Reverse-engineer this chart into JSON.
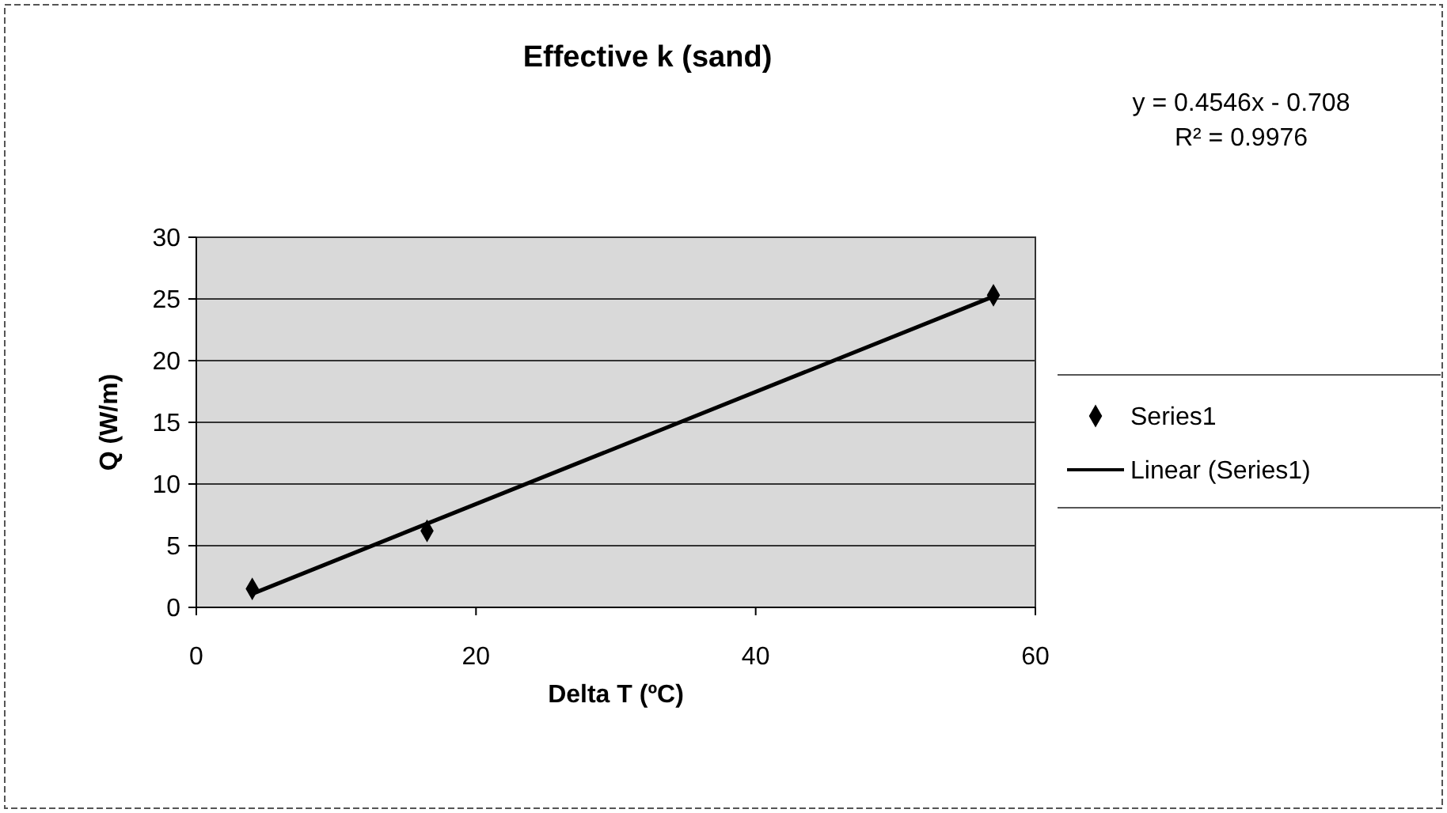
{
  "chart_data": {
    "type": "scatter",
    "title": "Effective k (sand)",
    "xlabel": "Delta T (ºC)",
    "ylabel": "Q (W/m)",
    "xlim": [
      0,
      60
    ],
    "xticks": [
      0,
      20,
      40,
      60
    ],
    "ylim": [
      0,
      30
    ],
    "yticks": [
      0,
      5,
      10,
      15,
      20,
      25,
      30
    ],
    "grid": "y",
    "legend": "right",
    "marker": "diamond",
    "series": [
      {
        "name": "Series1",
        "color": "#000000",
        "x": [
          4,
          16.5,
          57
        ],
        "values": [
          1.5,
          6.2,
          25.3
        ]
      },
      {
        "name": "Linear (Series1)",
        "type": "line",
        "marker": "none",
        "color": "#000000",
        "line_style": "solid",
        "x": [
          4,
          57
        ],
        "values": [
          1.1,
          25.2
        ]
      }
    ],
    "annotations": [
      "y = 0.4546x - 0.708",
      "R² = 0.9976"
    ]
  }
}
